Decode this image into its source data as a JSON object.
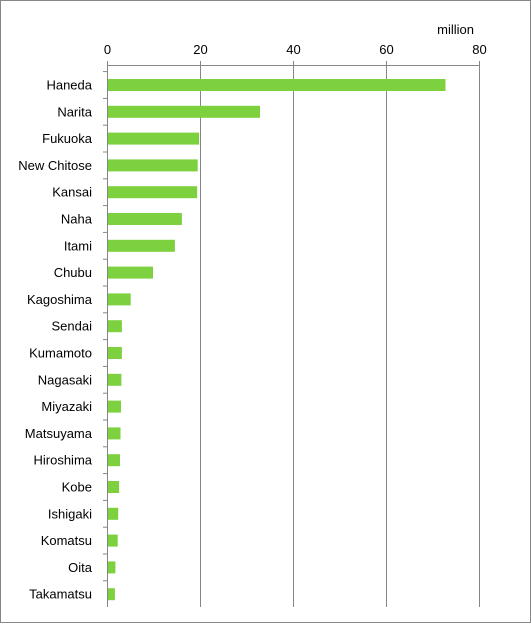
{
  "chart_data": {
    "type": "bar",
    "orientation": "horizontal",
    "unit_label": "million",
    "categories": [
      "Haneda",
      "Narita",
      "Fukuoka",
      "New Chitose",
      "Kansai",
      "Naha",
      "Itami",
      "Chubu",
      "Kagoshima",
      "Sendai",
      "Kumamoto",
      "Nagasaki",
      "Miyazaki",
      "Matsuyama",
      "Hiroshima",
      "Kobe",
      "Ishigaki",
      "Komatsu",
      "Oita",
      "Takamatsu"
    ],
    "values": [
      72.8,
      32.9,
      19.8,
      19.5,
      19.4,
      16.1,
      14.6,
      9.9,
      5.1,
      3.2,
      3.2,
      3.1,
      3.0,
      2.9,
      2.8,
      2.6,
      2.4,
      2.3,
      1.8,
      1.7
    ],
    "xlim": [
      0,
      80
    ],
    "xticks": [
      0,
      20,
      40,
      60,
      80
    ],
    "axis_position": "top",
    "grid": true,
    "bar_color": "#7dd13f",
    "grid_color": "#868686"
  }
}
